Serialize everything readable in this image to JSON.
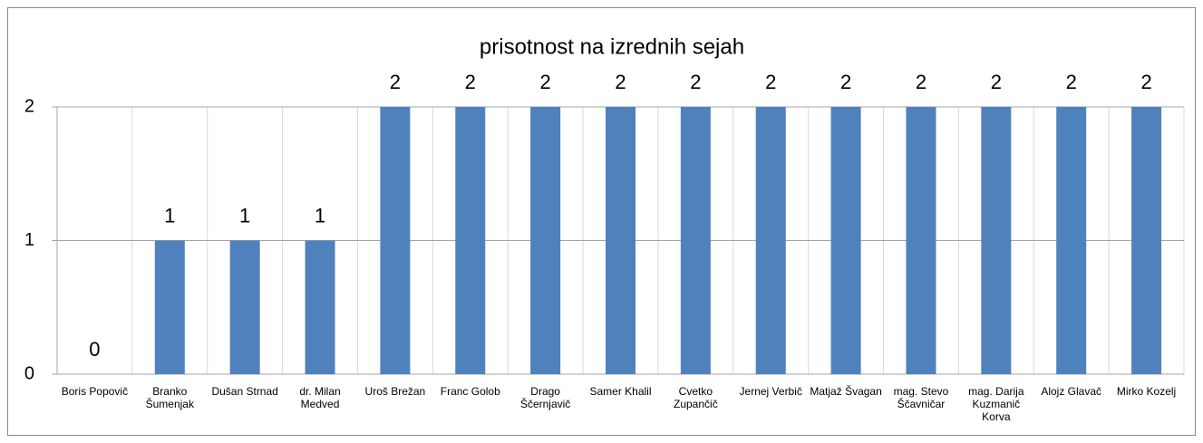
{
  "chart_data": {
    "type": "bar",
    "title": "prisotnost na izrednih sejah",
    "categories": [
      "Boris Popovič",
      "Branko Šumenjak",
      "Dušan Strnad",
      "dr. Milan Medved",
      "Uroš Brežan",
      "Franc Golob",
      "Drago Ščernjavič",
      "Samer Khalil",
      "Cvetko Zupančič",
      "Jernej Verbič",
      "Matjaž Švagan",
      "mag. Stevo Ščavničar",
      "mag. Darija Kuzmanič Korva",
      "Alojz Glavač",
      "Mirko Kozelj"
    ],
    "values": [
      0,
      1,
      1,
      1,
      2,
      2,
      2,
      2,
      2,
      2,
      2,
      2,
      2,
      2,
      2
    ],
    "color": "#4f81bd",
    "ylim": [
      0,
      2
    ],
    "yticks": [
      0,
      1,
      2
    ],
    "grid": true
  }
}
